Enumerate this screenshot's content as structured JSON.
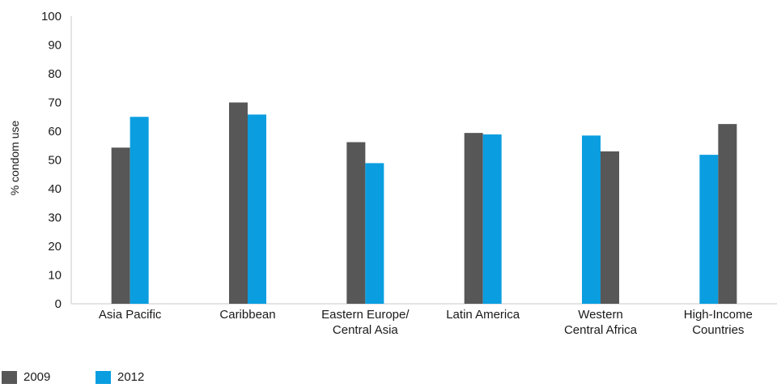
{
  "chart_data": {
    "type": "bar",
    "ylabel": "% condom use",
    "ylim": [
      0,
      100
    ],
    "yticks": [
      0,
      10,
      20,
      30,
      40,
      50,
      60,
      70,
      80,
      90,
      100
    ],
    "grid": false,
    "legend_position": "bottom-left",
    "categories": [
      [
        "Asia Pacific"
      ],
      [
        "Caribbean"
      ],
      [
        "Eastern Europe/",
        "Central Asia"
      ],
      [
        "Latin America"
      ],
      [
        "Western",
        "Central Africa"
      ],
      [
        "High-Income",
        "Countries"
      ]
    ],
    "series": [
      {
        "name": "2009",
        "color": "#575757",
        "values": [
          54.3,
          70.0,
          56.2,
          59.4,
          53.0,
          62.5
        ]
      },
      {
        "name": "2012",
        "color": "#0a9ee0",
        "values": [
          65.0,
          65.8,
          48.9,
          58.9,
          58.5,
          51.8
        ]
      }
    ],
    "bar_order_per_category": [
      [
        "2009",
        "2012"
      ],
      [
        "2009",
        "2012"
      ],
      [
        "2009",
        "2012"
      ],
      [
        "2009",
        "2012"
      ],
      [
        "2012",
        "2009"
      ],
      [
        "2012",
        "2009"
      ]
    ]
  }
}
